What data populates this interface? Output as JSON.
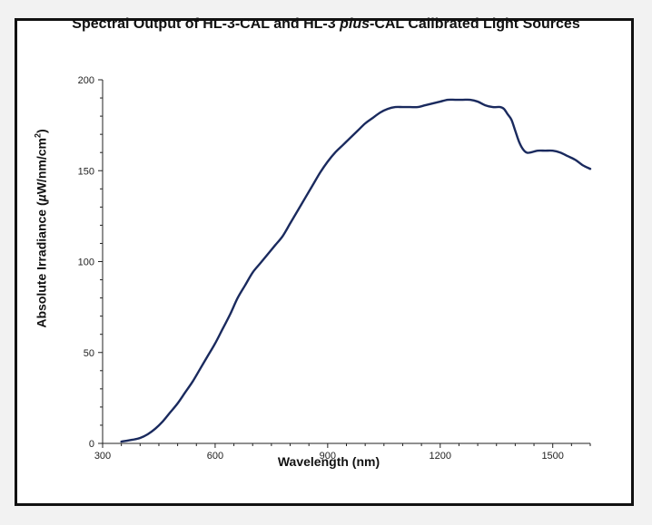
{
  "chart_data": {
    "type": "line",
    "title_parts": [
      "Spectral Output of HL-3-CAL and HL-3 ",
      "plus",
      "-CAL Calibrated Light Sources"
    ],
    "xlabel": "Wavelength (nm)",
    "ylabel_parts": [
      "Absolute Irradiance (",
      "µ",
      "W/nm/cm",
      "2",
      ")"
    ],
    "xlim": [
      300,
      1600
    ],
    "ylim": [
      0,
      200
    ],
    "x_ticks": [
      300,
      600,
      900,
      1200,
      1500
    ],
    "y_ticks": [
      0,
      50,
      100,
      150,
      200
    ],
    "grid": false,
    "line_color": "#1a2a5e",
    "series": [
      {
        "x": [
          350,
          380,
          400,
          420,
          440,
          460,
          480,
          500,
          520,
          540,
          560,
          580,
          600,
          620,
          640,
          660,
          680,
          700,
          720,
          740,
          760,
          780,
          800,
          820,
          840,
          860,
          880,
          900,
          920,
          940,
          960,
          980,
          1000,
          1020,
          1040,
          1060,
          1080,
          1100,
          1120,
          1140,
          1160,
          1180,
          1200,
          1220,
          1240,
          1260,
          1280,
          1300,
          1320,
          1340,
          1360,
          1370,
          1380,
          1390,
          1400,
          1410,
          1420,
          1430,
          1440,
          1460,
          1480,
          1500,
          1520,
          1540,
          1560,
          1580,
          1600
        ],
        "y": [
          1,
          2,
          3,
          5,
          8,
          12,
          17,
          22,
          28,
          34,
          41,
          48,
          55,
          63,
          71,
          80,
          87,
          94,
          99,
          104,
          109,
          114,
          121,
          128,
          135,
          142,
          149,
          155,
          160,
          164,
          168,
          172,
          176,
          179,
          182,
          184,
          185,
          185,
          185,
          185,
          186,
          187,
          188,
          189,
          189,
          189,
          189,
          188,
          186,
          185,
          185,
          184,
          181,
          178,
          172,
          166,
          162,
          160,
          160,
          161,
          161,
          161,
          160,
          158,
          156,
          153,
          151
        ]
      }
    ]
  }
}
